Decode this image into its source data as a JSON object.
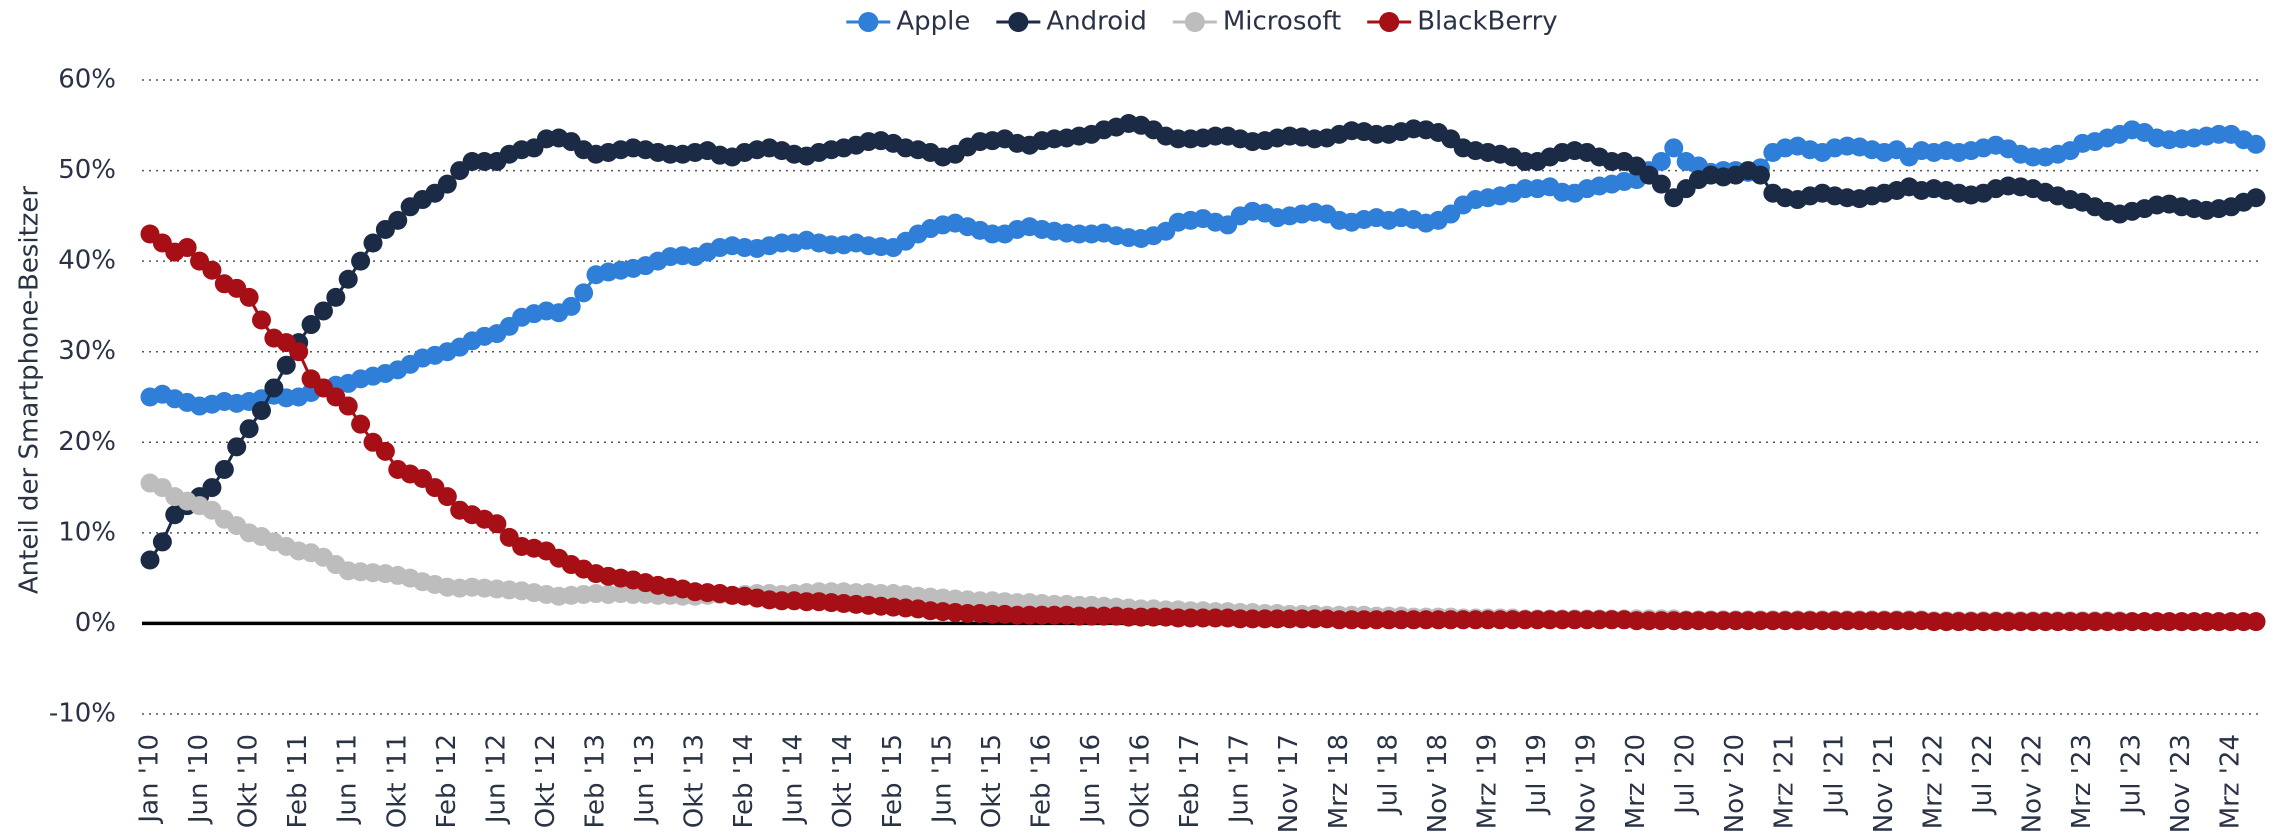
{
  "chart_data": {
    "type": "line",
    "y_label": "Anteil der Smartphone-Besitzer",
    "categories": [
      "Jan '10",
      null,
      null,
      null,
      "Jun '10",
      null,
      null,
      null,
      "Okt '10",
      null,
      null,
      null,
      "Feb '11",
      null,
      null,
      null,
      "Jun '11",
      null,
      null,
      null,
      "Okt '11",
      null,
      null,
      null,
      "Feb '12",
      null,
      null,
      null,
      "Jun '12",
      null,
      null,
      null,
      "Okt '12",
      null,
      null,
      null,
      "Feb '13",
      null,
      null,
      null,
      "Jun '13",
      null,
      null,
      null,
      "Okt '13",
      null,
      null,
      null,
      "Feb '14",
      null,
      null,
      null,
      "Jun '14",
      null,
      null,
      null,
      "Okt '14",
      null,
      null,
      null,
      "Feb '15",
      null,
      null,
      null,
      "Jun '15",
      null,
      null,
      null,
      "Okt '15",
      null,
      null,
      null,
      "Feb '16",
      null,
      null,
      null,
      "Jun '16",
      null,
      null,
      null,
      "Okt '16",
      null,
      null,
      null,
      "Feb '17",
      null,
      null,
      null,
      "Jun '17",
      null,
      null,
      null,
      "Nov '17",
      null,
      null,
      null,
      "Mrz '18",
      null,
      null,
      null,
      "Jul '18",
      null,
      null,
      null,
      "Nov '18",
      null,
      null,
      null,
      "Mrz '19",
      null,
      null,
      null,
      "Jul '19",
      null,
      null,
      null,
      "Nov '19",
      null,
      null,
      null,
      "Mrz '20",
      null,
      null,
      null,
      "Jul '20",
      null,
      null,
      null,
      "Nov '20",
      null,
      null,
      null,
      "Mrz '21",
      null,
      null,
      null,
      "Jul '21",
      null,
      null,
      null,
      "Nov '21",
      null,
      null,
      null,
      "Mrz '22",
      null,
      null,
      null,
      "Jul '22",
      null,
      null,
      null,
      "Nov '22",
      null,
      null,
      null,
      "Mrz '23",
      null,
      null,
      null,
      "Jul '23",
      null,
      null,
      null,
      "Nov '23",
      null,
      null,
      null,
      "Mrz '24",
      null,
      null
    ],
    "series": [
      {
        "name": "Apple",
        "color": "#2f7ed8",
        "values": [
          25,
          25.3,
          24.8,
          24.4,
          24,
          24.2,
          24.5,
          24.3,
          24.5,
          24.8,
          25.2,
          24.9,
          25,
          25.5,
          26,
          26.3,
          26.5,
          27,
          27.3,
          27.6,
          28,
          28.6,
          29.3,
          29.6,
          30,
          30.5,
          31.2,
          31.7,
          32,
          32.8,
          33.8,
          34.2,
          34.5,
          34.3,
          35,
          36.5,
          38.5,
          38.8,
          39,
          39.2,
          39.5,
          40,
          40.5,
          40.6,
          40.5,
          41,
          41.5,
          41.7,
          41.5,
          41.4,
          41.7,
          42,
          42,
          42.3,
          42,
          41.8,
          41.8,
          42,
          41.7,
          41.6,
          41.5,
          42.2,
          43,
          43.6,
          44,
          44.2,
          43.8,
          43.4,
          43,
          43,
          43.5,
          43.8,
          43.5,
          43.3,
          43.1,
          43,
          43,
          43.1,
          42.8,
          42.6,
          42.5,
          42.8,
          43.3,
          44.3,
          44.5,
          44.7,
          44.3,
          44,
          45,
          45.5,
          45.3,
          44.8,
          45,
          45.2,
          45.4,
          45.2,
          44.5,
          44.3,
          44.6,
          44.8,
          44.5,
          44.8,
          44.6,
          44.2,
          44.5,
          45.2,
          46.2,
          46.8,
          47,
          47.2,
          47.5,
          48,
          48,
          48.2,
          47.6,
          47.5,
          48,
          48.3,
          48.5,
          48.8,
          49,
          50,
          51,
          52.5,
          51,
          50.5,
          49.8,
          50,
          50,
          49.8,
          50.3,
          52,
          52.5,
          52.7,
          52.3,
          52,
          52.5,
          52.7,
          52.6,
          52.3,
          52,
          52.3,
          51.5,
          52.2,
          52,
          52.2,
          52,
          52.2,
          52.5,
          52.8,
          52.4,
          51.8,
          51.5,
          51.5,
          51.8,
          52.2,
          53,
          53.2,
          53.6,
          54,
          54.5,
          54.2,
          53.6,
          53.4,
          53.5,
          53.6,
          53.8,
          54,
          54,
          53.4,
          52.9
        ]
      },
      {
        "name": "Android",
        "color": "#1c2b45",
        "values": [
          7,
          9,
          12,
          13,
          14,
          15,
          17,
          19.5,
          21.5,
          23.5,
          26,
          28.5,
          31,
          33,
          34.5,
          36,
          38,
          40,
          42,
          43.5,
          44.5,
          46,
          46.8,
          47.5,
          48.5,
          50,
          51,
          51,
          51,
          51.8,
          52.3,
          52.5,
          53.5,
          53.6,
          53.2,
          52.3,
          51.8,
          52,
          52.3,
          52.5,
          52.3,
          52,
          51.8,
          51.8,
          52,
          52.2,
          51.7,
          51.5,
          52,
          52.3,
          52.5,
          52.2,
          51.8,
          51.6,
          52,
          52.3,
          52.5,
          52.8,
          53.2,
          53.3,
          53,
          52.5,
          52.3,
          52,
          51.5,
          51.8,
          52.6,
          53.2,
          53.3,
          53.5,
          53,
          52.8,
          53.3,
          53.5,
          53.6,
          53.8,
          54,
          54.5,
          54.8,
          55.2,
          55,
          54.5,
          53.8,
          53.5,
          53.5,
          53.6,
          53.8,
          53.8,
          53.5,
          53.2,
          53.3,
          53.6,
          53.8,
          53.7,
          53.5,
          53.6,
          54,
          54.4,
          54.3,
          54,
          54,
          54.3,
          54.6,
          54.5,
          54.2,
          53.5,
          52.5,
          52.2,
          52,
          51.8,
          51.5,
          51,
          51,
          51.5,
          52,
          52.2,
          52,
          51.5,
          51,
          51,
          50.5,
          49.5,
          48.5,
          47,
          48,
          49,
          49.5,
          49.3,
          49.5,
          50,
          49.5,
          47.5,
          47,
          46.8,
          47.2,
          47.5,
          47.2,
          47,
          46.9,
          47.2,
          47.5,
          47.8,
          48.2,
          47.8,
          48,
          47.8,
          47.5,
          47.3,
          47.5,
          48,
          48.3,
          48.2,
          48,
          47.6,
          47.2,
          46.8,
          46.5,
          46,
          45.5,
          45.2,
          45.5,
          45.8,
          46.2,
          46.3,
          46,
          45.8,
          45.6,
          45.8,
          46,
          46.5,
          47
        ]
      },
      {
        "name": "Microsoft",
        "color": "#bdbdbd",
        "values": [
          15.5,
          15,
          14,
          13.5,
          13,
          12.5,
          11.5,
          10.8,
          10,
          9.6,
          9,
          8.5,
          8,
          7.8,
          7.3,
          6.5,
          5.8,
          5.7,
          5.6,
          5.5,
          5.3,
          5,
          4.6,
          4.3,
          4,
          3.9,
          4,
          3.9,
          3.8,
          3.7,
          3.6,
          3.4,
          3.2,
          3,
          3.1,
          3.2,
          3.3,
          3.2,
          3.3,
          3.2,
          3.2,
          3.1,
          3.1,
          3,
          3,
          3.1,
          3.2,
          3.1,
          3.2,
          3.3,
          3.3,
          3.2,
          3.3,
          3.4,
          3.5,
          3.5,
          3.5,
          3.4,
          3.4,
          3.3,
          3.3,
          3.2,
          3,
          2.9,
          2.8,
          2.7,
          2.6,
          2.5,
          2.5,
          2.4,
          2.3,
          2.3,
          2.2,
          2.1,
          2.1,
          2,
          2,
          1.9,
          1.8,
          1.7,
          1.6,
          1.6,
          1.5,
          1.5,
          1.4,
          1.4,
          1.3,
          1.3,
          1.2,
          1.2,
          1.1,
          1.1,
          1,
          1,
          1,
          0.9,
          0.9,
          0.9,
          0.9,
          0.8,
          0.8,
          0.8,
          0.7,
          0.7,
          0.7,
          0.7,
          0.6,
          0.6,
          0.6,
          0.6,
          0.6,
          0.5,
          0.5,
          0.5,
          0.5,
          0.5,
          0.5,
          0.5,
          0.5,
          0.5,
          0.5,
          0.5,
          0.5,
          0.5,
          0.4,
          0.4,
          0.4,
          0.4,
          0.4,
          0.4,
          0.4,
          0.4,
          0.4,
          0.4,
          0.4,
          0.4,
          0.4,
          0.4,
          0.4,
          0.4,
          0.4,
          0.4,
          0.4,
          0.4,
          0.3,
          0.3,
          0.3,
          0.3,
          0.3,
          0.3,
          0.3,
          0.3,
          0.3,
          0.3,
          0.3,
          0.3,
          0.3,
          0.3,
          0.3,
          0.3,
          0.2,
          0.2,
          0.2,
          0.2,
          0.2,
          0.2,
          0.2,
          0.2,
          0.2,
          0.2,
          0.2
        ]
      },
      {
        "name": "BlackBerry",
        "color": "#a50f15",
        "values": [
          43,
          42,
          41,
          41.5,
          40,
          39,
          37.5,
          37,
          36,
          33.5,
          31.5,
          31,
          30,
          27,
          26,
          25,
          24,
          22,
          20,
          19,
          17,
          16.5,
          16,
          15,
          14,
          12.5,
          12,
          11.5,
          11,
          9.5,
          8.5,
          8.3,
          8,
          7.2,
          6.5,
          6,
          5.5,
          5.2,
          5,
          4.8,
          4.5,
          4.2,
          4,
          3.8,
          3.5,
          3.4,
          3.3,
          3.1,
          3,
          2.8,
          2.6,
          2.5,
          2.5,
          2.4,
          2.4,
          2.3,
          2.2,
          2.1,
          2,
          1.9,
          1.8,
          1.7,
          1.6,
          1.4,
          1.3,
          1.2,
          1.1,
          1.1,
          1,
          1,
          0.9,
          0.9,
          0.9,
          0.9,
          0.9,
          0.8,
          0.8,
          0.8,
          0.8,
          0.7,
          0.7,
          0.7,
          0.7,
          0.6,
          0.6,
          0.6,
          0.6,
          0.6,
          0.5,
          0.5,
          0.5,
          0.5,
          0.5,
          0.5,
          0.5,
          0.5,
          0.4,
          0.4,
          0.4,
          0.4,
          0.4,
          0.4,
          0.4,
          0.4,
          0.4,
          0.4,
          0.4,
          0.4,
          0.4,
          0.4,
          0.4,
          0.4,
          0.4,
          0.4,
          0.4,
          0.4,
          0.4,
          0.4,
          0.4,
          0.4,
          0.3,
          0.3,
          0.3,
          0.3,
          0.3,
          0.3,
          0.3,
          0.3,
          0.3,
          0.3,
          0.3,
          0.3,
          0.3,
          0.3,
          0.3,
          0.3,
          0.3,
          0.3,
          0.3,
          0.3,
          0.3,
          0.3,
          0.3,
          0.3,
          0.2,
          0.2,
          0.2,
          0.2,
          0.2,
          0.2,
          0.2,
          0.2,
          0.2,
          0.2,
          0.2,
          0.2,
          0.2,
          0.2,
          0.2,
          0.2,
          0.2,
          0.2,
          0.2,
          0.2,
          0.2,
          0.2,
          0.2,
          0.2,
          0.2,
          0.2,
          0.2
        ]
      }
    ],
    "ylim": [
      -10,
      60
    ],
    "yticks": [
      {
        "value": -10,
        "label": "-10%"
      },
      {
        "value": 0,
        "label": "0%"
      },
      {
        "value": 10,
        "label": "10%"
      },
      {
        "value": 20,
        "label": "20%"
      },
      {
        "value": 30,
        "label": "30%"
      },
      {
        "value": 40,
        "label": "40%"
      },
      {
        "value": 50,
        "label": "50%"
      },
      {
        "value": 60,
        "label": "60%"
      }
    ],
    "grid": true,
    "legend": "top"
  }
}
